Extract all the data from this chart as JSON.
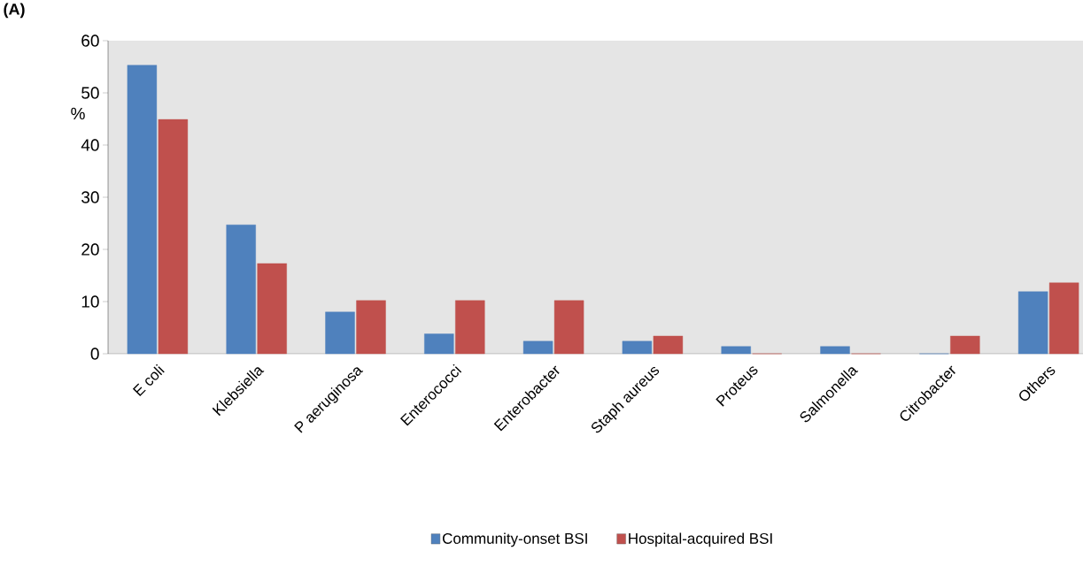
{
  "chart_data": {
    "type": "bar",
    "ylabel": "%",
    "annotations": [
      "(A)"
    ],
    "categories": [
      "E coli",
      "Klebsiella",
      "P aeruginosa",
      "Enterococci",
      "Enterobacter",
      "Staph aureus",
      "Proteus",
      "Salmonella",
      "Citrobacter",
      "Others"
    ],
    "series": [
      {
        "name": "Community-onset BSI",
        "color": "#4f81bd",
        "values": [
          55.3,
          24.7,
          8.0,
          3.8,
          2.4,
          2.4,
          1.4,
          1.4,
          0,
          11.9
        ]
      },
      {
        "name": "Hospital-acquired BSI",
        "color": "#c0504d",
        "values": [
          44.9,
          17.3,
          10.2,
          10.2,
          10.2,
          3.4,
          0,
          0,
          3.4,
          13.6
        ]
      }
    ],
    "ylim": [
      0,
      60
    ],
    "yticks": [
      0,
      10,
      20,
      30,
      40,
      50,
      60
    ],
    "grid": false,
    "legend": "bottom"
  }
}
